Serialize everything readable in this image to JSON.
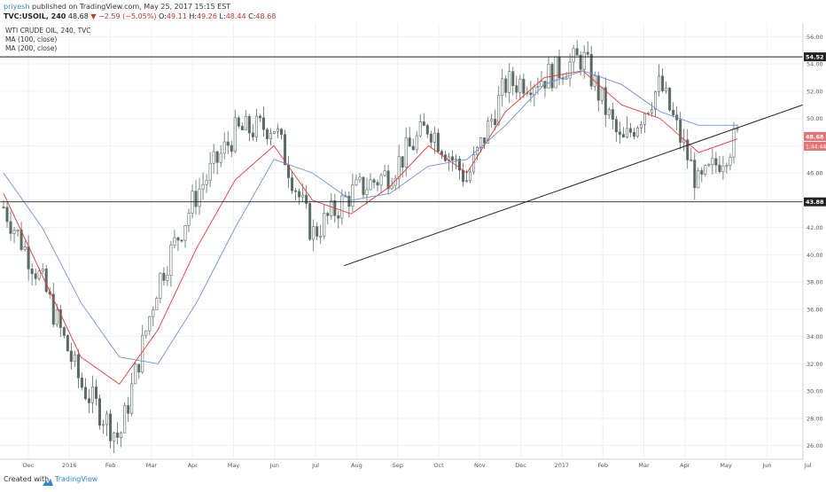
{
  "header": {
    "author": "priyesh",
    "published": " published on TradingView.com, May 25, 2017 15:15 EST",
    "symbol": "TVC:USOIL, 240",
    "last": "48.68",
    "change": "▼ −2.59 (−5.05%)",
    "o_label": "O:",
    "o_value": "49.11",
    "h_label": "H:",
    "h_value": "49.26",
    "l_label": "L:",
    "l_value": "48.44",
    "c_label": "C:",
    "c_value": "48.68"
  },
  "footer": {
    "created": "Created with",
    "brand": "TradingView",
    "brand_icon": "tradingview-logo-icon"
  },
  "colors": {
    "candle_up": "#5a6b63",
    "candle_down": "#5a6b63",
    "ma100": "#e53935",
    "ma200": "#6f8fd8",
    "trendline": "#222222",
    "grid": "#eef0f2",
    "badge_last": "#e57373",
    "badge_level": "#222222",
    "badge_ma": "#e57373"
  },
  "chart_data": {
    "type": "candlestick",
    "title": "WTI CRUDE OIL, 240, TVC",
    "legend": [
      "MA (100, close)",
      "MA (200, close)"
    ],
    "x_ticks": [
      "Dec",
      "2016",
      "Feb",
      "Mar",
      "Apr",
      "May",
      "Jun",
      "Jul",
      "Aug",
      "Sep",
      "Oct",
      "Nov",
      "Dec",
      "2017",
      "Feb",
      "Mar",
      "Apr",
      "May",
      "Jun",
      "Jul"
    ],
    "y_ticks": [
      "26.00",
      "28.00",
      "30.00",
      "32.00",
      "34.00",
      "36.00",
      "38.00",
      "40.00",
      "42.00",
      "44.00",
      "46.00",
      "48.00",
      "50.00",
      "52.00",
      "54.00",
      "56.00"
    ],
    "ylim": [
      25,
      57
    ],
    "last_price": "48.68",
    "last_ma_badge": "1:44:44",
    "horizontal_levels": [
      "54.52",
      "43.88"
    ],
    "trendline": {
      "start": [
        "Aug 2016",
        39.2
      ],
      "end": [
        "Jul 2017",
        51.0
      ]
    },
    "series": [
      {
        "name": "close",
        "x": [
          "Nov 2015",
          "Dec",
          "Jan 2016",
          "Feb",
          "Mar",
          "Apr",
          "May",
          "Jun",
          "Jul",
          "Aug",
          "Sep",
          "Oct",
          "Nov",
          "Dec",
          "Jan 2017",
          "Feb",
          "Mar",
          "Apr",
          "May",
          "May 25"
        ],
        "values": [
          43.5,
          38.0,
          30.5,
          26.5,
          38.0,
          44.5,
          49.0,
          49.5,
          41.5,
          44.5,
          46.0,
          49.5,
          45.5,
          52.5,
          53.0,
          54.5,
          48.0,
          52.5,
          45.0,
          48.68
        ]
      },
      {
        "name": "MA (100, close)",
        "values": [
          44.5,
          38.5,
          32.5,
          30.5,
          34.5,
          40.5,
          45.5,
          48.0,
          44.0,
          43.0,
          45.0,
          48.0,
          46.0,
          50.5,
          53.0,
          53.5,
          51.0,
          50.0,
          47.5,
          48.5
        ]
      },
      {
        "name": "MA (200, close)",
        "values": [
          46.0,
          42.0,
          36.5,
          32.5,
          32.0,
          36.5,
          42.0,
          47.0,
          46.0,
          44.0,
          44.5,
          46.5,
          47.0,
          49.5,
          52.5,
          53.5,
          52.5,
          50.5,
          49.5,
          49.5
        ]
      }
    ]
  }
}
